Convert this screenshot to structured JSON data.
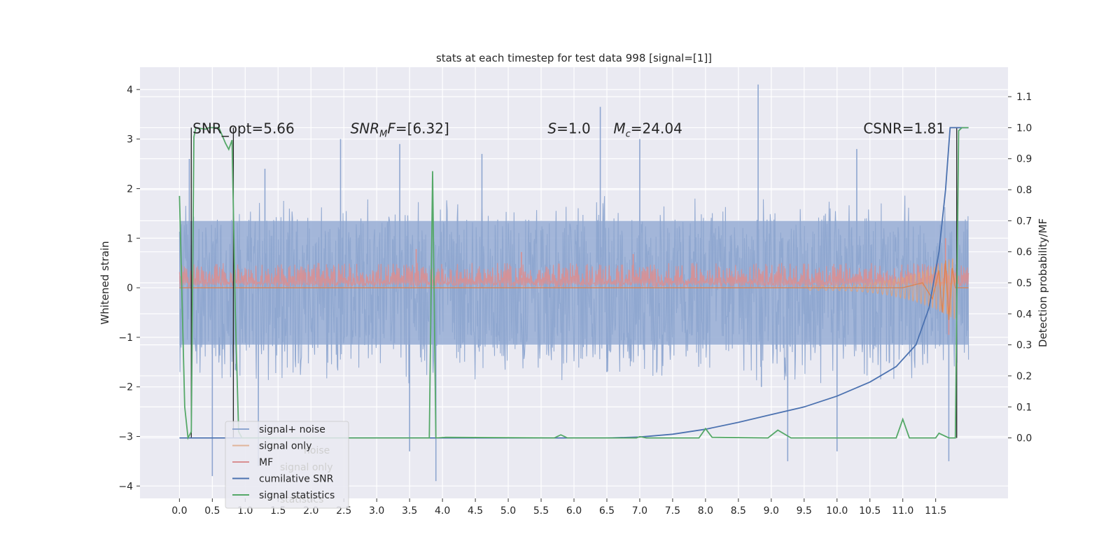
{
  "chart_data": {
    "type": "line",
    "title": "stats at each timestep for test data 998 [signal=[1]]",
    "xlabel": "",
    "ylabel": "Whitened strain",
    "ylabel_right": "Detection probability/MF",
    "xlim": [
      -0.6,
      12.6
    ],
    "ylim": [
      -4.25,
      4.45
    ],
    "ylim_right": [
      -0.195,
      1.195
    ],
    "x_ticks": [
      0.0,
      0.5,
      1.0,
      1.5,
      2.0,
      2.5,
      3.0,
      3.5,
      4.0,
      4.5,
      5.0,
      5.5,
      6.0,
      6.5,
      7.0,
      7.5,
      8.0,
      8.5,
      9.0,
      9.5,
      10.0,
      10.5,
      11.0,
      11.5
    ],
    "x_tick_labels": [
      "0.0",
      "0.5",
      "1.0",
      "1.5",
      "2.0",
      "2.5",
      "3.0",
      "3.5",
      "4.0",
      "4.5",
      "5.0",
      "5.5",
      "6.0",
      "6.5",
      "7.0",
      "7.5",
      "8.0",
      "8.5",
      "9.0",
      "9.5",
      "10.0",
      "10.5",
      "11.0",
      "11.5"
    ],
    "y_ticks": [
      -4,
      -3,
      -2,
      -1,
      0,
      1,
      2,
      3,
      4
    ],
    "y_tick_labels": [
      "−4",
      "−3",
      "−2",
      "−1",
      "0",
      "1",
      "2",
      "3",
      "4"
    ],
    "y_ticks_right": [
      0.0,
      0.1,
      0.2,
      0.3,
      0.4,
      0.5,
      0.6,
      0.7,
      0.8,
      0.9,
      1.0,
      1.1
    ],
    "y_tick_labels_right": [
      "0.0",
      "0.1",
      "0.2",
      "0.3",
      "0.4",
      "0.5",
      "0.6",
      "0.7",
      "0.8",
      "0.9",
      "1.0",
      "1.1"
    ],
    "grid": true,
    "legend_position": "lower-left",
    "annotations": [
      {
        "text": "SNR_opt=5.66",
        "x": 0.2,
        "y": 3.2
      },
      {
        "text": "SNR_MF=[6.32]",
        "x": 2.6,
        "y": 3.2
      },
      {
        "text": "S=1.0",
        "x": 5.6,
        "y": 3.2
      },
      {
        "text": "M_c=24.04",
        "x": 6.6,
        "y": 3.2
      },
      {
        "text": "CSNR=1.81",
        "x": 10.4,
        "y": 3.2
      }
    ],
    "series": [
      {
        "name": "signal+ noise",
        "axis": "left",
        "color": "#4c72b0",
        "style": "dense-noise",
        "x_range": [
          0.0,
          12.0
        ],
        "envelope_upper_typ": 1.9,
        "envelope_lower_typ": -2.0,
        "peaks": [
          [
            0.15,
            2.6
          ],
          [
            1.3,
            2.4
          ],
          [
            2.45,
            3.0
          ],
          [
            3.35,
            2.9
          ],
          [
            4.6,
            2.7
          ],
          [
            6.4,
            3.65
          ],
          [
            6.5,
            -1.7
          ],
          [
            7.0,
            3.0
          ],
          [
            8.8,
            4.1
          ],
          [
            8.85,
            -2.0
          ],
          [
            10.3,
            2.8
          ],
          [
            0.5,
            -3.8
          ],
          [
            3.9,
            -3.9
          ],
          [
            3.5,
            -3.3
          ],
          [
            1.2,
            -3.6
          ],
          [
            10.0,
            -3.3
          ],
          [
            11.7,
            -3.5
          ],
          [
            9.25,
            -3.5
          ]
        ]
      },
      {
        "name": "signal only",
        "axis": "left",
        "color": "#dd8452",
        "points": [
          [
            0.0,
            0.0
          ],
          [
            11.0,
            0.0
          ],
          [
            11.3,
            0.1
          ],
          [
            11.45,
            -0.22
          ],
          [
            11.55,
            0.35
          ],
          [
            11.6,
            -0.5
          ],
          [
            11.65,
            0.55
          ],
          [
            11.7,
            -0.65
          ],
          [
            11.75,
            0.4
          ],
          [
            11.8,
            0.0
          ],
          [
            12.0,
            0.0
          ]
        ]
      },
      {
        "name": "MF",
        "axis": "left",
        "color": "#c44e52",
        "x_range": [
          0.0,
          12.0
        ],
        "band": [
          0.0,
          0.5
        ],
        "spikes": [
          [
            3.6,
            0.78
          ],
          [
            5.2,
            0.72
          ],
          [
            6.9,
            0.68
          ],
          [
            11.65,
            1.0
          ],
          [
            11.7,
            -0.95
          ]
        ]
      },
      {
        "name": "cumilative SNR",
        "axis": "right",
        "color": "#4c72b0",
        "points": [
          [
            0.0,
            0.0
          ],
          [
            6.5,
            0.0
          ],
          [
            7.0,
            0.003
          ],
          [
            7.5,
            0.012
          ],
          [
            8.0,
            0.028
          ],
          [
            8.5,
            0.05
          ],
          [
            9.0,
            0.075
          ],
          [
            9.5,
            0.1
          ],
          [
            10.0,
            0.135
          ],
          [
            10.5,
            0.18
          ],
          [
            10.9,
            0.23
          ],
          [
            11.2,
            0.3
          ],
          [
            11.4,
            0.42
          ],
          [
            11.55,
            0.6
          ],
          [
            11.65,
            0.8
          ],
          [
            11.72,
            1.0
          ],
          [
            12.0,
            1.0
          ]
        ]
      },
      {
        "name": "signal statistics",
        "axis": "right",
        "color": "#55a868",
        "points": [
          [
            0.0,
            0.78
          ],
          [
            0.08,
            0.1
          ],
          [
            0.13,
            0.0
          ],
          [
            0.18,
            0.02
          ],
          [
            0.22,
            0.97
          ],
          [
            0.25,
            1.0
          ],
          [
            0.4,
            0.995
          ],
          [
            0.45,
            1.0
          ],
          [
            0.6,
            1.0
          ],
          [
            0.7,
            0.95
          ],
          [
            0.75,
            0.93
          ],
          [
            0.8,
            0.96
          ],
          [
            0.85,
            0.4
          ],
          [
            0.9,
            0.02
          ],
          [
            0.95,
            0.0
          ],
          [
            3.8,
            0.0
          ],
          [
            3.85,
            0.86
          ],
          [
            3.9,
            0.0
          ],
          [
            4.05,
            0.002
          ],
          [
            5.7,
            0.0
          ],
          [
            5.8,
            0.01
          ],
          [
            5.9,
            0.0
          ],
          [
            6.95,
            0.0
          ],
          [
            7.0,
            0.004
          ],
          [
            7.1,
            0.0
          ],
          [
            7.9,
            0.0
          ],
          [
            8.0,
            0.03
          ],
          [
            8.1,
            0.002
          ],
          [
            8.95,
            0.0
          ],
          [
            9.1,
            0.025
          ],
          [
            9.3,
            0.0
          ],
          [
            10.9,
            0.0
          ],
          [
            11.0,
            0.06
          ],
          [
            11.1,
            0.0
          ],
          [
            11.5,
            0.0
          ],
          [
            11.55,
            0.015
          ],
          [
            11.7,
            0.0
          ],
          [
            11.8,
            0.0
          ],
          [
            11.85,
            0.99
          ],
          [
            11.9,
            1.0
          ],
          [
            12.0,
            1.0
          ]
        ]
      }
    ],
    "extra_vertical_lines": [
      {
        "x": 0.18,
        "axis": "right",
        "from": 0.0,
        "to": 1.0,
        "color": "#222222"
      },
      {
        "x": 0.82,
        "axis": "right",
        "from": 0.0,
        "to": 1.0,
        "color": "#222222"
      },
      {
        "x": 11.82,
        "axis": "right",
        "from": 0.0,
        "to": 1.0,
        "color": "#222222"
      }
    ],
    "legend": [
      {
        "label": "signal+ noise",
        "color": "#8ea6d0"
      },
      {
        "label": "signal only",
        "color": "#e0b49a"
      },
      {
        "label": "MF",
        "color": "#d98f91"
      },
      {
        "label": "cumilative SNR",
        "color": "#4c72b0"
      },
      {
        "label": "signal statistics",
        "color": "#55a868"
      }
    ],
    "legend_ghost": [
      {
        "label": "noise"
      },
      {
        "label": "signal only"
      },
      {
        "label": "statistics"
      }
    ]
  }
}
